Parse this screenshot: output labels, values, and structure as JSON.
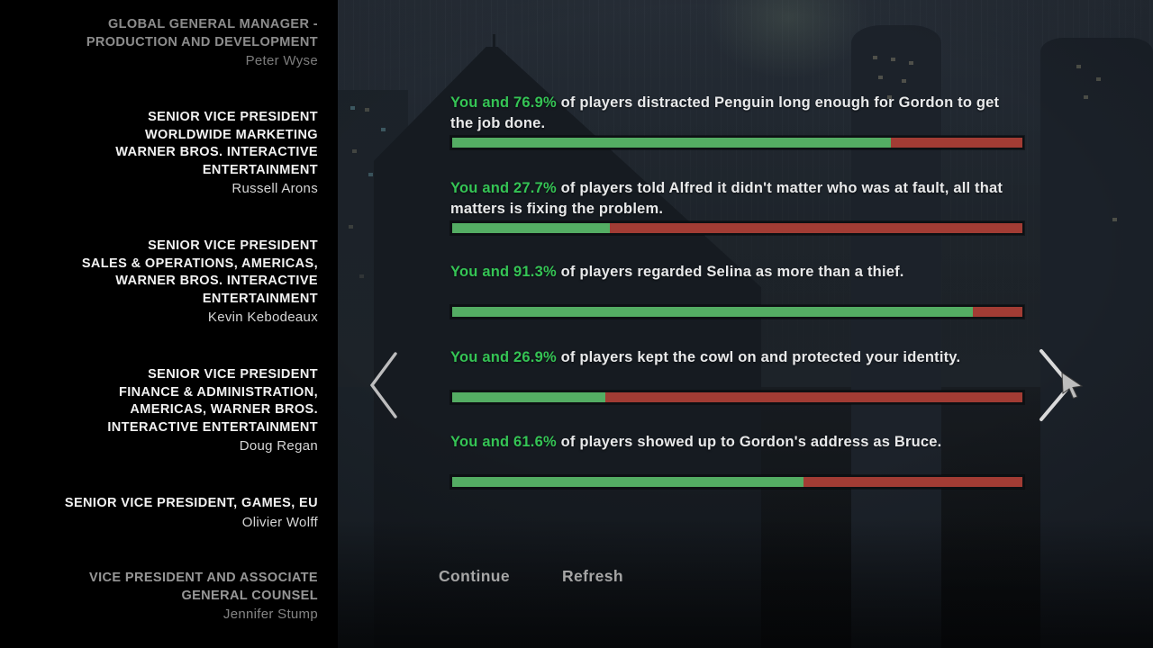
{
  "credits": {
    "entries": [
      {
        "title": [
          "GLOBAL GENERAL MANAGER -",
          "PRODUCTION AND DEVELOPMENT"
        ],
        "name": "Peter Wyse"
      },
      {
        "title": [
          "SENIOR VICE PRESIDENT",
          "WORLDWIDE MARKETING",
          "WARNER BROS. INTERACTIVE",
          "ENTERTAINMENT"
        ],
        "name": "Russell Arons"
      },
      {
        "title": [
          "SENIOR VICE PRESIDENT",
          "SALES & OPERATIONS, AMERICAS,",
          "WARNER BROS. INTERACTIVE",
          "ENTERTAINMENT"
        ],
        "name": "Kevin Kebodeaux"
      },
      {
        "title": [
          "SENIOR VICE PRESIDENT",
          "FINANCE & ADMINISTRATION,",
          "AMERICAS, WARNER BROS.",
          "INTERACTIVE ENTERTAINMENT"
        ],
        "name": "Doug Regan"
      },
      {
        "title": [
          "SENIOR VICE PRESIDENT, GAMES, EU"
        ],
        "name": "Olivier Wolff"
      },
      {
        "title": [
          "VICE PRESIDENT AND ASSOCIATE",
          "GENERAL COUNSEL"
        ],
        "name": "Jennifer Stump"
      }
    ]
  },
  "stats": {
    "items": [
      {
        "highlight": "You and 76.9%",
        "rest": " of players distracted Penguin long enough for Gordon to get the job done.",
        "percent": 76.9
      },
      {
        "highlight": "You and 27.7%",
        "rest": " of players told Alfred it didn't matter who was at fault, all that matters is fixing the problem.",
        "percent": 27.7
      },
      {
        "highlight": "You and 91.3%",
        "rest": " of players regarded Selina as more than a thief.",
        "percent": 91.3
      },
      {
        "highlight": "You and 26.9%",
        "rest": " of players kept the cowl on and protected your identity.",
        "percent": 26.9
      },
      {
        "highlight": "You and 61.6%",
        "rest": " of players showed up to Gordon's address as Bruce.",
        "percent": 61.6
      }
    ]
  },
  "actions": {
    "continue_label": "Continue",
    "refresh_label": "Refresh"
  },
  "colors": {
    "highlight_green": "#35c455",
    "bar_green": "#54ad63",
    "bar_red": "#a23c34"
  }
}
